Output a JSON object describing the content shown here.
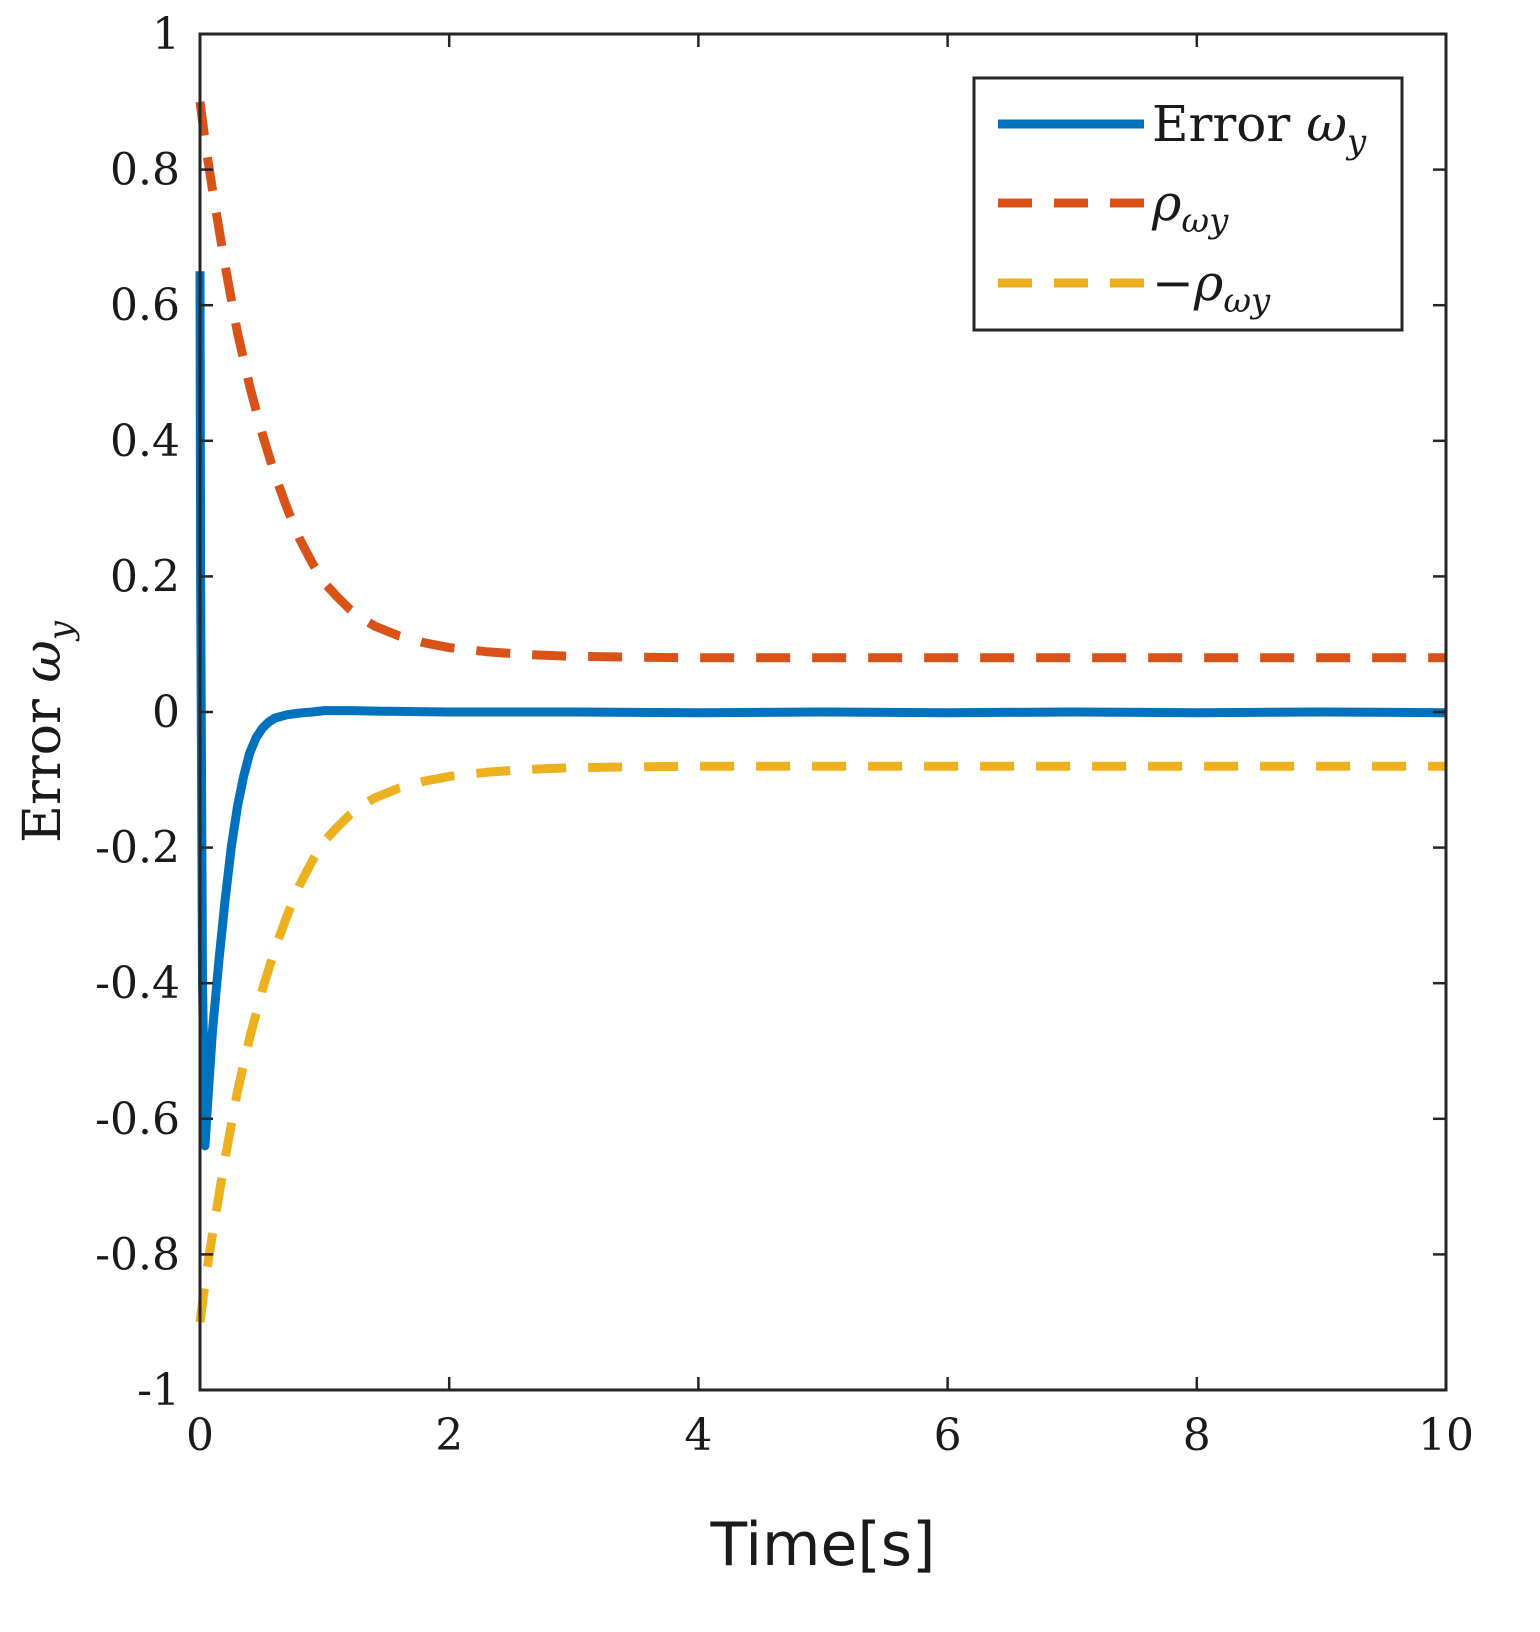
{
  "chart_data": {
    "type": "line",
    "title": "",
    "xlabel": "Time[s]",
    "ylabel": {
      "base": "Error ",
      "greek": "ω",
      "sub": "y"
    },
    "xlim": [
      0,
      10
    ],
    "ylim": [
      -1,
      1
    ],
    "xticks": [
      0,
      2,
      4,
      6,
      8,
      10
    ],
    "yticks": [
      -1,
      -0.8,
      -0.6,
      -0.4,
      -0.2,
      0,
      0.2,
      0.4,
      0.6,
      0.8,
      1
    ],
    "xtick_labels": [
      "0",
      "2",
      "4",
      "6",
      "8",
      "10"
    ],
    "ytick_labels": [
      "-1",
      "-0.8",
      "-0.6",
      "-0.4",
      "-0.2",
      "0",
      "0.2",
      "0.4",
      "0.6",
      "0.8",
      "1"
    ],
    "grid": false,
    "legend_position": "top-right",
    "series": [
      {
        "name": "Error ωy",
        "legend": {
          "prefix": "Error ",
          "greek": "ω",
          "sub": "y"
        },
        "color": "#0072BD",
        "style": "solid",
        "x": [
          0,
          0.005,
          0.02,
          0.04,
          0.06,
          0.1,
          0.15,
          0.2,
          0.25,
          0.3,
          0.35,
          0.4,
          0.45,
          0.5,
          0.55,
          0.6,
          0.7,
          0.8,
          0.9,
          1.0,
          1.2,
          1.5,
          2,
          3,
          4,
          5,
          6,
          7,
          8,
          9,
          10
        ],
        "values": [
          0.65,
          0.2,
          -0.4,
          -0.64,
          -0.58,
          -0.47,
          -0.37,
          -0.28,
          -0.2,
          -0.14,
          -0.095,
          -0.06,
          -0.038,
          -0.024,
          -0.015,
          -0.009,
          -0.004,
          -0.0015,
          0,
          0.002,
          0.002,
          0.001,
          0,
          0,
          -0.001,
          0,
          -0.001,
          0,
          -0.001,
          0,
          -0.001
        ]
      },
      {
        "name": "ρωy",
        "legend": {
          "prefix": "",
          "greek": "ρ",
          "sub": "ωy"
        },
        "color": "#D95319",
        "style": "dashed",
        "x": [
          0,
          0.05,
          0.1,
          0.2,
          0.3,
          0.4,
          0.5,
          0.6,
          0.7,
          0.8,
          0.9,
          1.0,
          1.1,
          1.2,
          1.3,
          1.4,
          1.6,
          1.8,
          2.0,
          2.3,
          2.6,
          3.0,
          3.5,
          4,
          5,
          6,
          7,
          8,
          9,
          10
        ],
        "values": [
          0.9,
          0.83,
          0.77,
          0.66,
          0.56,
          0.48,
          0.41,
          0.35,
          0.3,
          0.255,
          0.22,
          0.19,
          0.17,
          0.152,
          0.138,
          0.127,
          0.112,
          0.102,
          0.095,
          0.089,
          0.085,
          0.082,
          0.081,
          0.08,
          0.08,
          0.08,
          0.08,
          0.08,
          0.08,
          0.08
        ]
      },
      {
        "name": "-ρωy",
        "legend": {
          "prefix": "−",
          "greek": "ρ",
          "sub": "ωy"
        },
        "color": "#EDB120",
        "style": "dashed",
        "x": [
          0,
          0.05,
          0.1,
          0.2,
          0.3,
          0.4,
          0.5,
          0.6,
          0.7,
          0.8,
          0.9,
          1.0,
          1.1,
          1.2,
          1.3,
          1.4,
          1.6,
          1.8,
          2.0,
          2.3,
          2.6,
          3.0,
          3.5,
          4,
          5,
          6,
          7,
          8,
          9,
          10
        ],
        "values": [
          -0.9,
          -0.83,
          -0.77,
          -0.66,
          -0.56,
          -0.48,
          -0.41,
          -0.35,
          -0.3,
          -0.255,
          -0.22,
          -0.19,
          -0.17,
          -0.152,
          -0.138,
          -0.127,
          -0.112,
          -0.102,
          -0.095,
          -0.089,
          -0.085,
          -0.082,
          -0.081,
          -0.08,
          -0.08,
          -0.08,
          -0.08,
          -0.08,
          -0.08,
          -0.08
        ]
      }
    ]
  }
}
